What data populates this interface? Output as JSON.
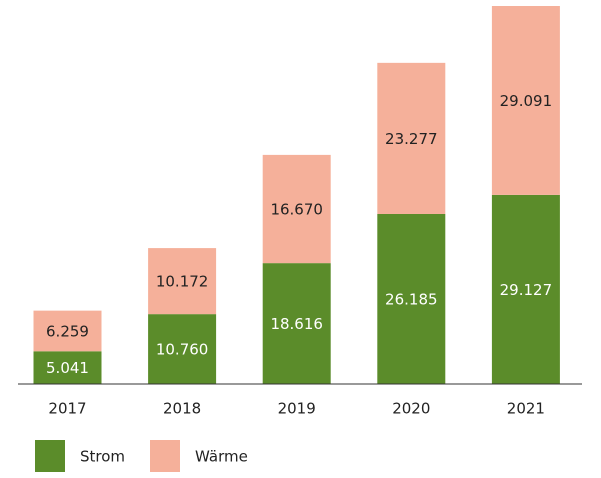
{
  "chart_data": {
    "type": "stacked_bar",
    "categories": [
      "2017",
      "2018",
      "2019",
      "2020",
      "2021"
    ],
    "series": [
      {
        "name": "Strom",
        "color": "#5b8c2a",
        "values": [
          5041,
          10760,
          18616,
          26185,
          29127
        ],
        "value_labels": [
          "5.041",
          "10.760",
          "18.616",
          "26.185",
          "29.127"
        ]
      },
      {
        "name": "Wärme",
        "color": "#f5b09a",
        "values": [
          6259,
          10172,
          16670,
          23277,
          29091
        ],
        "value_labels": [
          "6.259",
          "10.172",
          "16.670",
          "23.277",
          "29.091"
        ]
      }
    ]
  }
}
